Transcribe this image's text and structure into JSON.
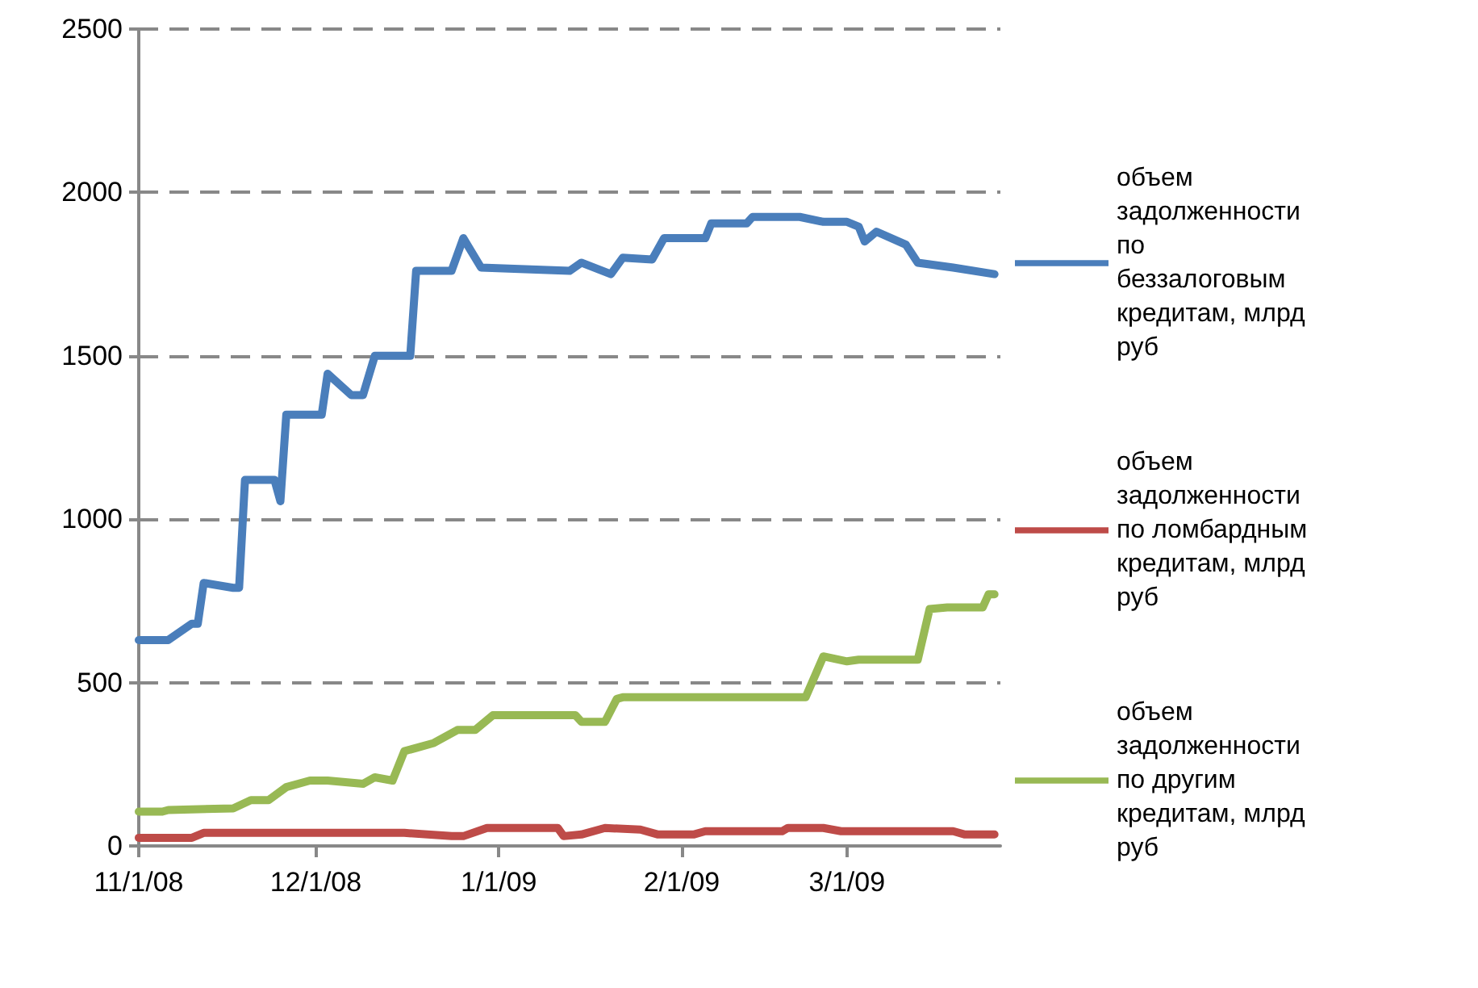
{
  "chart_data": {
    "type": "line",
    "xlim": [
      "2008-11-01",
      "2009-03-27"
    ],
    "xticks": [
      {
        "value": "2008-11-01",
        "label": "11/1/08"
      },
      {
        "value": "2008-12-01",
        "label": "12/1/08"
      },
      {
        "value": "2009-01-01",
        "label": "1/1/09"
      },
      {
        "value": "2009-02-01",
        "label": "2/1/09"
      },
      {
        "value": "2009-03-01",
        "label": "3/1/09"
      }
    ],
    "ylim": [
      0,
      2500
    ],
    "yticks": [
      0,
      500,
      1000,
      1500,
      2000,
      2500
    ],
    "grid": "y",
    "legend": "right",
    "marker": "none",
    "line_style": "solid",
    "series": [
      {
        "name": "объем задолженности по беззалоговым кредитам, млрд руб",
        "color": "#4a7ebb",
        "x": [
          "2008-11-01",
          "2008-11-06",
          "2008-11-10",
          "2008-11-11",
          "2008-11-12",
          "2008-11-17",
          "2008-11-18",
          "2008-11-19",
          "2008-11-24",
          "2008-11-25",
          "2008-11-26",
          "2008-12-02",
          "2008-12-03",
          "2008-12-07",
          "2008-12-09",
          "2008-12-11",
          "2008-12-17",
          "2008-12-18",
          "2008-12-24",
          "2008-12-26",
          "2008-12-29",
          "2009-01-13",
          "2009-01-15",
          "2009-01-20",
          "2009-01-22",
          "2009-01-27",
          "2009-01-29",
          "2009-02-05",
          "2009-02-06",
          "2009-02-12",
          "2009-02-13",
          "2009-02-21",
          "2009-02-25",
          "2009-03-01",
          "2009-03-03",
          "2009-03-04",
          "2009-03-06",
          "2009-03-11",
          "2009-03-13",
          "2009-03-19",
          "2009-03-26"
        ],
        "values": [
          630,
          630,
          680,
          680,
          805,
          790,
          790,
          1120,
          1120,
          1055,
          1320,
          1320,
          1445,
          1380,
          1380,
          1500,
          1500,
          1760,
          1760,
          1860,
          1770,
          1760,
          1785,
          1750,
          1800,
          1795,
          1860,
          1860,
          1905,
          1905,
          1925,
          1925,
          1910,
          1910,
          1895,
          1850,
          1880,
          1840,
          1785,
          1770,
          1750
        ]
      },
      {
        "name": "объем задолженности по ломбардным кредитам, млрд руб",
        "color": "#be4b48",
        "x": [
          "2008-11-01",
          "2008-11-10",
          "2008-11-12",
          "2008-12-16",
          "2008-12-24",
          "2008-12-26",
          "2008-12-30",
          "2009-01-11",
          "2009-01-12",
          "2009-01-15",
          "2009-01-19",
          "2009-01-25",
          "2009-01-28",
          "2009-02-03",
          "2009-02-05",
          "2009-02-18",
          "2009-02-19",
          "2009-02-25",
          "2009-02-28",
          "2009-03-19",
          "2009-03-21",
          "2009-03-26"
        ],
        "values": [
          25,
          25,
          40,
          40,
          30,
          30,
          55,
          55,
          30,
          35,
          55,
          50,
          35,
          35,
          45,
          45,
          55,
          55,
          45,
          45,
          35,
          35
        ]
      },
      {
        "name": "объем задолженности по другим кредитам, млрд руб",
        "color": "#98b954",
        "x": [
          "2008-11-01",
          "2008-11-05",
          "2008-11-06",
          "2008-11-17",
          "2008-11-20",
          "2008-11-23",
          "2008-11-26",
          "2008-11-30",
          "2008-12-03",
          "2008-12-09",
          "2008-12-11",
          "2008-12-14",
          "2008-12-16",
          "2008-12-18",
          "2008-12-21",
          "2008-12-25",
          "2008-12-28",
          "2008-12-31",
          "2009-01-14",
          "2009-01-15",
          "2009-01-19",
          "2009-01-21",
          "2009-01-22",
          "2009-02-22",
          "2009-02-25",
          "2009-03-01",
          "2009-03-03",
          "2009-03-13",
          "2009-03-15",
          "2009-03-18",
          "2009-03-24",
          "2009-03-25",
          "2009-03-26"
        ],
        "values": [
          105,
          105,
          110,
          115,
          140,
          140,
          180,
          200,
          200,
          190,
          210,
          200,
          290,
          300,
          315,
          355,
          355,
          400,
          400,
          380,
          380,
          450,
          455,
          455,
          580,
          565,
          570,
          570,
          725,
          730,
          730,
          770,
          770
        ]
      }
    ]
  }
}
